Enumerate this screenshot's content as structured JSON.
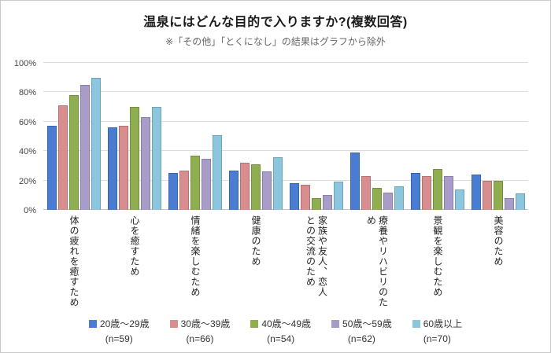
{
  "title": "温泉にはどんな目的で入りますか?(複数回答)",
  "subtitle": "※「その他」「とくになし」の結果はグラフから除外",
  "chart_data": {
    "type": "bar",
    "title": "温泉にはどんな目的で入りますか?(複数回答)",
    "subtitle": "※「その他」「とくになし」の結果はグラフから除外",
    "categories": [
      "体の疲れを癒すため",
      "心を癒すため",
      "情緒を楽しむため",
      "健康のため",
      "家族や友人、恋人\nとの交流のため",
      "療養やリハビリのため",
      "景観を楽しむため",
      "美容のため"
    ],
    "series": [
      {
        "name": "20歳〜29歳",
        "n_label": "(n=59)",
        "color": "#4a7dd1",
        "values": [
          57,
          56,
          25,
          27,
          18,
          39,
          25,
          24
        ]
      },
      {
        "name": "30歳〜39歳",
        "n_label": "(n=66)",
        "color": "#d88e8e",
        "values": [
          71,
          57,
          27,
          32,
          17,
          23,
          23,
          20
        ]
      },
      {
        "name": "40歳〜49歳",
        "n_label": "(n=54)",
        "color": "#8fae50",
        "values": [
          78,
          70,
          37,
          31,
          8,
          15,
          28,
          20
        ]
      },
      {
        "name": "50歳〜59歳",
        "n_label": "(n=62)",
        "color": "#a89cc8",
        "values": [
          85,
          63,
          35,
          26,
          10,
          12,
          23,
          8
        ]
      },
      {
        "name": "60歳以上",
        "n_label": "(n=70)",
        "color": "#8cc6de",
        "values": [
          90,
          70,
          51,
          36,
          19,
          16,
          14,
          11
        ]
      }
    ],
    "ylabel": "",
    "xlabel": "",
    "ylim": [
      0,
      100
    ],
    "yticks": [
      0,
      20,
      40,
      60,
      80,
      100
    ],
    "ytick_suffix": "%",
    "grid": true,
    "legend_position": "bottom"
  }
}
